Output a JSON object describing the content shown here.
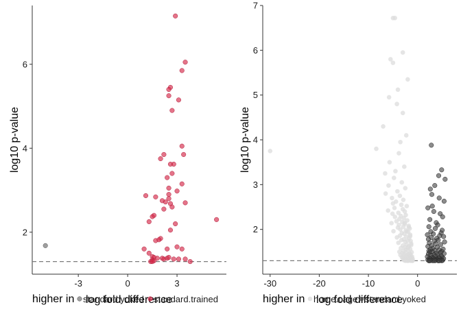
{
  "chart_data": [
    {
      "type": "scatter",
      "xlabel": "log fold difference",
      "ylabel": "log10 p-value",
      "xlim": [
        -5.8,
        6.0
      ],
      "ylim": [
        1.0,
        7.4
      ],
      "xticks": [
        -3,
        0,
        3
      ],
      "xtick_labels": [
        "-3",
        "0",
        "3"
      ],
      "yticks": [
        2,
        4,
        6
      ],
      "ytick_labels": [
        "2",
        "4",
        "6"
      ],
      "grid": false,
      "threshold_line": 1.3,
      "legend": {
        "title": "higher in",
        "placement": "bottom",
        "entries": [
          {
            "label": "standard.yoked",
            "color": "#7f7f7f"
          },
          {
            "label": "standard.trained",
            "color": "#d6294a"
          }
        ]
      },
      "series": [
        {
          "name": "standard.yoked",
          "color": "#7f7f7f",
          "x": [
            -5.0
          ],
          "y": [
            1.68
          ]
        },
        {
          "name": "standard.trained",
          "color": "#d6294a",
          "x": [
            2.9,
            3.5,
            3.3,
            2.6,
            2.5,
            2.5,
            3.1,
            2.7,
            3.3,
            3.4,
            2.2,
            2.0,
            2.6,
            2.8,
            2.7,
            2.4,
            3.3,
            2.5,
            3.0,
            2.5,
            1.1,
            1.7,
            2.5,
            2.1,
            2.3,
            3.5,
            2.6,
            2.7,
            2.2,
            1.6,
            1.5,
            5.4,
            1.3,
            2.9,
            2.6,
            2.0,
            1.9,
            3.0,
            3.3,
            2.4,
            1.0,
            1.3,
            1.5,
            1.6,
            1.8,
            2.1,
            2.4,
            2.8,
            3.1,
            3.5,
            1.5,
            1.6,
            1.4,
            1.5,
            3.8,
            2.2,
            2.5,
            1.7
          ],
          "y": [
            7.15,
            6.05,
            5.85,
            5.45,
            5.4,
            5.25,
            5.15,
            4.9,
            4.05,
            3.85,
            3.85,
            3.75,
            3.62,
            3.62,
            3.4,
            3.3,
            3.15,
            3.05,
            2.98,
            2.9,
            2.87,
            2.84,
            2.8,
            2.75,
            2.72,
            2.7,
            2.68,
            2.6,
            2.55,
            2.4,
            2.37,
            2.3,
            2.25,
            2.2,
            2.05,
            1.85,
            1.82,
            1.65,
            1.6,
            1.6,
            1.6,
            1.5,
            1.42,
            1.4,
            1.38,
            1.38,
            1.38,
            1.36,
            1.36,
            1.36,
            1.34,
            1.32,
            1.3,
            1.3,
            1.3,
            1.36,
            1.4,
            1.8
          ]
        }
      ]
    },
    {
      "type": "scatter",
      "xlabel": "log fold difference",
      "ylabel": "log10 p-value",
      "xlim": [
        -31.5,
        8.0
      ],
      "ylim": [
        1.0,
        7.0
      ],
      "xticks": [
        -30,
        -20,
        -10,
        0
      ],
      "xtick_labels": [
        "-30",
        "-20",
        "-10",
        "0"
      ],
      "yticks": [
        2,
        3,
        4,
        5,
        6,
        7
      ],
      "ytick_labels": [
        "2",
        "3",
        "4",
        "5",
        "6",
        "7"
      ],
      "grid": false,
      "threshold_line": 1.3,
      "legend": {
        "title": "higher in",
        "placement": "bottom",
        "entries": [
          {
            "label": "home.cage",
            "color": "#dcdcdc"
          },
          {
            "label": "standard.yoked",
            "color": "#404040"
          }
        ]
      },
      "series": [
        {
          "name": "home.cage",
          "color": "#dcdcdc",
          "x": [
            -30.0,
            -5.0,
            -4.6,
            -3.0,
            -5.5,
            -5.0,
            -2.0,
            -4.0,
            -5.8,
            -4.2,
            -3.0,
            -7.0,
            -2.3,
            -3.5,
            -8.4,
            -3.8,
            -5.7,
            -2.7,
            -4.5,
            -6.6,
            -4.8,
            -3.2,
            -5.9,
            -2.5,
            -4.1,
            -6.5,
            -3.6,
            -5.2,
            -2.9,
            -4.4,
            -5.0,
            -3.3,
            -2.2,
            -4.7,
            -3.0,
            -6.0,
            -2.6,
            -3.9,
            -5.1,
            -2.4,
            -3.4,
            -4.6,
            -2.8,
            -3.7,
            -2.1,
            -4.3,
            -3.1,
            -5.3,
            -2.6,
            -3.8,
            -1.8,
            -2.9,
            -4.0,
            -1.6,
            -3.5,
            -2.4,
            -4.9,
            -1.9,
            -3.2,
            -2.7,
            -1.5,
            -3.6,
            -2.3,
            -4.2,
            -1.7,
            -2.8,
            -3.3,
            -1.4,
            -2.5,
            -3.9,
            -1.3,
            -2.2,
            -3.0,
            -1.8,
            -2.6,
            -3.4,
            -1.5,
            -2.0,
            -2.9,
            -3.7,
            -1.2,
            -2.4,
            -3.1,
            -1.6,
            -2.7,
            -1.9,
            -3.5,
            -1.4,
            -2.3,
            -2.0,
            -1.1,
            -2.8,
            -3.2,
            -1.7,
            -2.5,
            -1.3,
            -2.1,
            -3.0,
            -1.5,
            -2.6,
            -1.0,
            -2.2,
            -2.9,
            -1.8,
            -2.4,
            -1.2,
            -2.0,
            -2.7,
            -1.6,
            -2.3,
            -1.1,
            -1.9,
            -2.5,
            -1.4,
            -2.1,
            -1.0,
            -1.7,
            -2.4,
            -1.3,
            -2.0,
            -1.5,
            -2.2,
            -1.8,
            -2.6,
            -1.2,
            -1.9
          ],
          "y": [
            3.75,
            6.72,
            6.72,
            5.95,
            5.8,
            5.72,
            5.35,
            5.12,
            4.95,
            4.8,
            4.6,
            4.3,
            4.1,
            3.95,
            3.8,
            3.7,
            3.5,
            3.4,
            3.3,
            3.25,
            3.15,
            3.05,
            2.98,
            2.92,
            2.85,
            2.8,
            2.75,
            2.7,
            2.66,
            2.62,
            2.58,
            2.55,
            2.52,
            2.48,
            2.45,
            2.42,
            2.4,
            2.37,
            2.35,
            2.32,
            2.3,
            2.28,
            2.25,
            2.23,
            2.2,
            2.18,
            2.16,
            2.14,
            2.12,
            2.1,
            2.08,
            2.06,
            2.04,
            2.02,
            2.0,
            1.98,
            1.96,
            1.94,
            1.92,
            1.9,
            1.88,
            1.86,
            1.84,
            1.82,
            1.8,
            1.78,
            1.76,
            1.74,
            1.72,
            1.7,
            1.68,
            1.66,
            1.64,
            1.62,
            1.6,
            1.58,
            1.56,
            1.54,
            1.52,
            1.5,
            1.49,
            1.48,
            1.47,
            1.46,
            1.45,
            1.44,
            1.43,
            1.42,
            1.41,
            1.4,
            1.39,
            1.39,
            1.38,
            1.38,
            1.37,
            1.37,
            1.36,
            1.36,
            1.35,
            1.35,
            1.34,
            1.34,
            1.33,
            1.33,
            1.32,
            1.32,
            1.32,
            1.31,
            1.31,
            1.31,
            1.3,
            1.3,
            1.3,
            1.3,
            1.3,
            1.3,
            1.45,
            1.55,
            1.65,
            1.75,
            1.85,
            1.95,
            2.05,
            2.15,
            1.35,
            1.6
          ]
        },
        {
          "name": "standard.yoked",
          "color": "#404040",
          "x": [
            2.8,
            4.9,
            5.6,
            4.3,
            3.5,
            2.6,
            2.9,
            4.4,
            5.4,
            3.0,
            2.1,
            3.3,
            4.6,
            5.1,
            2.5,
            3.8,
            4.1,
            2.3,
            3.6,
            5.0,
            2.7,
            4.8,
            3.2,
            2.0,
            4.5,
            5.3,
            2.8,
            3.9,
            2.2,
            4.2,
            3.4,
            5.5,
            2.4,
            3.7,
            4.7,
            2.9,
            2.1,
            4.0,
            3.1,
            5.2,
            2.6,
            4.4,
            3.5,
            2.3,
            4.9,
            3.0,
            2.5,
            4.6,
            3.8,
            5.4,
            2.2,
            4.1,
            3.3,
            2.7,
            4.8,
            3.6,
            2.0,
            5.0,
            4.3,
            2.9,
            3.2,
            4.5,
            2.4,
            5.3,
            3.9,
            2.6,
            4.0,
            3.4,
            2.1,
            4.7,
            3.7,
            2.8,
            5.1,
            4.2,
            2.3,
            3.1,
            4.9,
            2.5,
            3.5,
            4.4
          ],
          "y": [
            3.88,
            3.33,
            3.12,
            3.2,
            2.98,
            2.9,
            2.78,
            2.7,
            2.63,
            2.52,
            2.48,
            2.4,
            2.35,
            2.28,
            2.22,
            2.15,
            2.1,
            2.06,
            2.02,
            1.98,
            1.95,
            1.92,
            1.9,
            1.88,
            1.86,
            1.84,
            1.82,
            1.8,
            1.78,
            1.76,
            1.74,
            1.72,
            1.7,
            1.68,
            1.66,
            1.64,
            1.62,
            1.6,
            1.58,
            1.56,
            1.55,
            1.54,
            1.53,
            1.52,
            1.51,
            1.5,
            1.49,
            1.48,
            1.47,
            1.46,
            1.45,
            1.44,
            1.43,
            1.42,
            1.41,
            1.4,
            1.39,
            1.38,
            1.37,
            1.37,
            1.36,
            1.36,
            1.35,
            1.35,
            1.34,
            1.34,
            1.33,
            1.33,
            1.32,
            1.32,
            1.31,
            1.31,
            1.31,
            1.3,
            1.3,
            1.3,
            1.3,
            1.3,
            1.3,
            1.3
          ]
        }
      ]
    }
  ]
}
